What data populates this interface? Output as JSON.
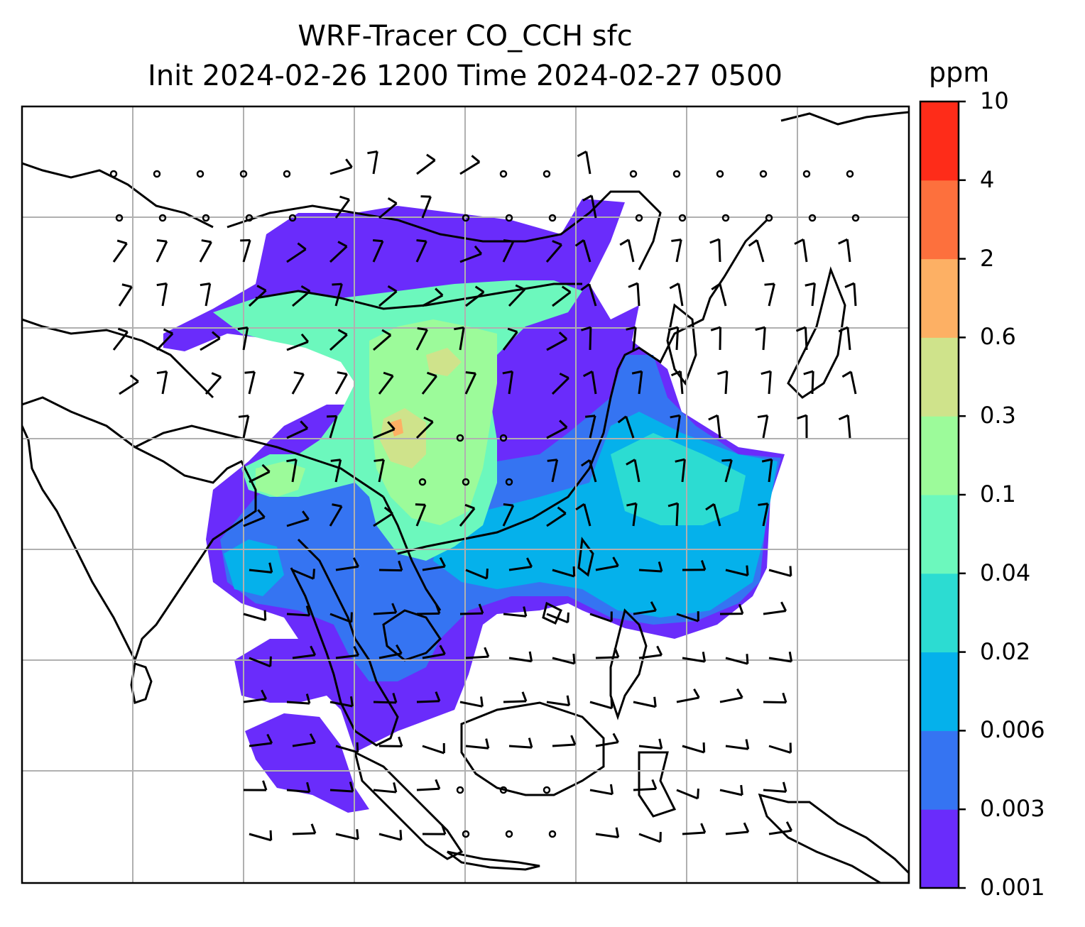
{
  "title": {
    "line1": "WRF-Tracer CO_CCH sfc",
    "line2": "Init 2024-02-26 1200 Time 2024-02-27 0500"
  },
  "colorbar": {
    "unit": "ppm",
    "levels": [
      "0.001",
      "0.003",
      "0.006",
      "0.02",
      "0.04",
      "0.1",
      "0.3",
      "0.6",
      "2",
      "4",
      "10"
    ],
    "colors": [
      "#6a2cfb",
      "#3574f2",
      "#05b1eb",
      "#2cdcd2",
      "#6cf8bd",
      "#9cfb9a",
      "#cfe38b",
      "#fdb064",
      "#fd703d",
      "#fe2c19"
    ]
  },
  "map": {
    "grid": "on",
    "land_outline_color": "#000000",
    "grid_color": "#b0b0b0"
  }
}
